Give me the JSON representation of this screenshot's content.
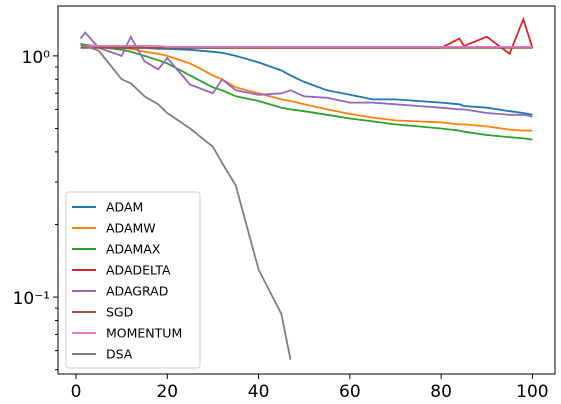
{
  "chart_data": {
    "type": "line",
    "log_y": true,
    "legend_position": "lower left",
    "x": [
      1,
      2,
      5,
      10,
      12,
      15,
      18,
      20,
      25,
      30,
      32,
      35,
      40,
      45,
      47,
      50,
      55,
      60,
      65,
      70,
      75,
      80,
      84,
      85,
      90,
      95,
      98,
      100
    ],
    "xlim": [
      -3.95,
      104.95
    ],
    "xticks": [
      0,
      20,
      40,
      60,
      80,
      100
    ],
    "ylim": [
      0.048,
      1.61
    ],
    "yticks": [
      {
        "value": 1,
        "label": "10⁰"
      },
      {
        "value": 0.1,
        "label": "10⁻¹"
      }
    ],
    "yminorticks": [
      0.05,
      0.06,
      0.07,
      0.08,
      0.09,
      0.2,
      0.3,
      0.4,
      0.5,
      0.6,
      0.7,
      0.8,
      0.9
    ],
    "series": [
      {
        "name": "ADAM",
        "color": "#1f77b4",
        "values": [
          1.12,
          1.11,
          1.1,
          1.09,
          1.09,
          1.08,
          1.07,
          1.07,
          1.06,
          1.04,
          1.03,
          1.0,
          0.94,
          0.87,
          0.83,
          0.78,
          0.72,
          0.69,
          0.66,
          0.66,
          0.65,
          0.64,
          0.63,
          0.62,
          0.61,
          0.59,
          0.58,
          0.57
        ]
      },
      {
        "name": "ADAMW",
        "color": "#ff7f0e",
        "values": [
          1.12,
          1.11,
          1.1,
          1.08,
          1.07,
          1.04,
          1.02,
          1.0,
          0.93,
          0.83,
          0.8,
          0.74,
          0.7,
          0.66,
          0.65,
          0.63,
          0.6,
          0.575,
          0.555,
          0.54,
          0.535,
          0.53,
          0.52,
          0.52,
          0.51,
          0.495,
          0.49,
          0.49
        ]
      },
      {
        "name": "ADAMAX",
        "color": "#2ca02c",
        "values": [
          1.12,
          1.11,
          1.09,
          1.06,
          1.04,
          1.0,
          0.96,
          0.93,
          0.83,
          0.74,
          0.72,
          0.68,
          0.65,
          0.61,
          0.6,
          0.59,
          0.57,
          0.55,
          0.535,
          0.52,
          0.51,
          0.5,
          0.49,
          0.485,
          0.47,
          0.46,
          0.455,
          0.45
        ]
      },
      {
        "name": "ADADELTA",
        "color": "#d62728",
        "values": [
          1.1,
          1.1,
          1.09,
          1.08,
          1.08,
          1.08,
          1.08,
          1.08,
          1.08,
          1.08,
          1.08,
          1.08,
          1.08,
          1.08,
          1.08,
          1.08,
          1.08,
          1.08,
          1.08,
          1.08,
          1.08,
          1.08,
          1.18,
          1.1,
          1.2,
          1.02,
          1.42,
          1.08
        ]
      },
      {
        "name": "ADAGRAD",
        "color": "#9467bd",
        "values": [
          1.18,
          1.25,
          1.08,
          1.0,
          1.2,
          0.95,
          0.88,
          0.98,
          0.76,
          0.7,
          0.8,
          0.72,
          0.69,
          0.7,
          0.72,
          0.68,
          0.67,
          0.64,
          0.64,
          0.63,
          0.62,
          0.61,
          0.6,
          0.6,
          0.58,
          0.57,
          0.57,
          0.56
        ]
      },
      {
        "name": "SGD",
        "color": "#8c564b",
        "values": [
          1.08,
          1.08,
          1.08,
          1.08,
          1.08,
          1.08,
          1.08,
          1.08,
          1.08,
          1.08,
          1.08,
          1.08,
          1.08,
          1.08,
          1.08,
          1.08,
          1.08,
          1.08,
          1.08,
          1.08,
          1.08,
          1.08,
          1.08,
          1.08,
          1.08,
          1.08,
          1.08,
          1.08
        ]
      },
      {
        "name": "MOMENTUM",
        "color": "#e377c2",
        "values": [
          1.1,
          1.1,
          1.1,
          1.1,
          1.1,
          1.1,
          1.1,
          1.09,
          1.09,
          1.09,
          1.09,
          1.09,
          1.09,
          1.09,
          1.09,
          1.09,
          1.09,
          1.09,
          1.09,
          1.09,
          1.09,
          1.09,
          1.09,
          1.09,
          1.09,
          1.09,
          1.09,
          1.09
        ]
      },
      {
        "name": "DSA",
        "color": "#7f7f7f",
        "values": [
          1.1,
          1.1,
          1.05,
          0.8,
          0.77,
          0.68,
          0.63,
          0.58,
          0.5,
          0.42,
          0.36,
          0.29,
          0.13,
          0.085,
          0.055,
          null,
          null,
          null,
          null,
          null,
          null,
          null,
          null,
          null,
          null,
          null,
          null,
          null
        ]
      }
    ]
  }
}
